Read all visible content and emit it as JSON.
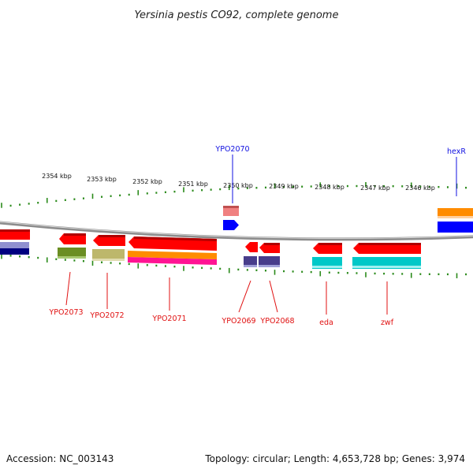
{
  "title": "Yersinia pestis CO92, complete genome",
  "footer": {
    "accession": "Accession: NC_003143",
    "summary": "Topology: circular; Length: 4,653,728 bp; Genes: 3,974"
  },
  "colors": {
    "backbone": "#8c8c8c",
    "tick": "#2a8a1a",
    "label_red": "#e01010",
    "label_blue": "#1010e0",
    "feature_red": "#ff0000",
    "feature_blue": "#0000ff",
    "feature_pink": "#f08080",
    "feature_olive": "#6b8e23",
    "feature_khaki": "#bdb76b",
    "feature_orange": "#ff8c00",
    "feature_magenta": "#ff1493",
    "feature_slate": "#483d8b",
    "feature_navy": "#000080",
    "feature_lavender": "#9090d0",
    "feature_cyan": "#00c8c8"
  },
  "ruler": {
    "tick_labels": [
      "2354 kbp",
      "2353 kbp",
      "2352 kbp",
      "2351 kbp",
      "2350 kbp",
      "2349 kbp",
      "2348 kbp",
      "2347 kbp",
      "2346 kbp"
    ]
  },
  "genes": {
    "upper": [
      {
        "name": "YPO2070",
        "color_key": "label_blue"
      },
      {
        "name": "hexR",
        "color_key": "label_blue"
      }
    ],
    "lower": [
      {
        "name": "YPO2073",
        "color_key": "label_red"
      },
      {
        "name": "YPO2072",
        "color_key": "label_red"
      },
      {
        "name": "YPO2071",
        "color_key": "label_red"
      },
      {
        "name": "YPO2069",
        "color_key": "label_red"
      },
      {
        "name": "YPO2068",
        "color_key": "label_red"
      },
      {
        "name": "eda",
        "color_key": "label_red"
      },
      {
        "name": "zwf",
        "color_key": "label_red"
      }
    ]
  }
}
